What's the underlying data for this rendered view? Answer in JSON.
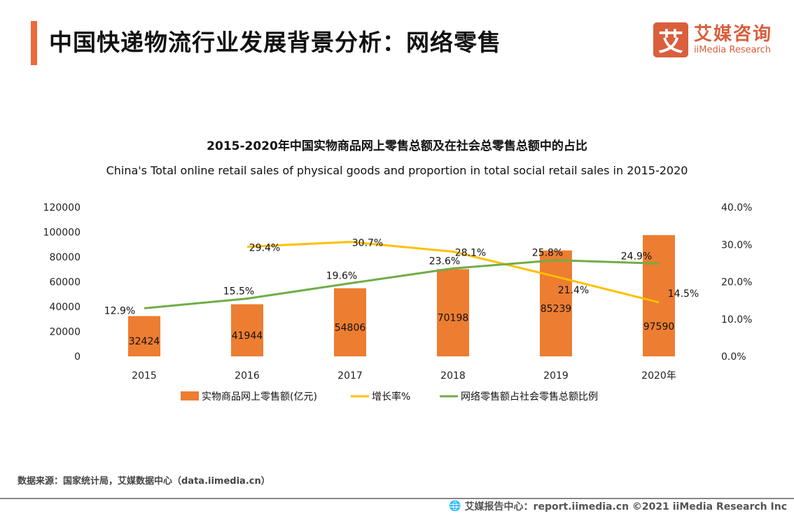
{
  "header": {
    "title": "中国快递物流行业发展背景分析：网络零售",
    "logo_mark": "艾",
    "logo_cn": "艾媒咨询",
    "logo_en": "iiMedia Research"
  },
  "chart_data": {
    "type": "bar+line",
    "title": "2015-2020年中国实物商品网上零售总额及在社会总零售总额中的占比",
    "subtitle": "China's Total online retail sales of physical goods and proportion in total social retail sales in 2015-2020",
    "categories": [
      "2015",
      "2016",
      "2017",
      "2018",
      "2019",
      "2020年"
    ],
    "y_left": {
      "range": [
        0,
        120000
      ],
      "ticks": [
        "0",
        "20000",
        "40000",
        "60000",
        "80000",
        "100000",
        "120000"
      ]
    },
    "y_right": {
      "range": [
        0,
        40
      ],
      "ticks": [
        "0.0%",
        "10.0%",
        "20.0%",
        "30.0%",
        "40.0%"
      ]
    },
    "series": [
      {
        "name": "实物商品网上零售额(亿元)",
        "type": "bar",
        "color": "#ed7d31",
        "values": [
          32424,
          41944,
          54806,
          70198,
          85239,
          97590
        ],
        "labels": [
          "32424",
          "41944",
          "54806",
          "70198",
          "85239",
          "97590"
        ]
      },
      {
        "name": "增长率%",
        "type": "line",
        "axis": "right",
        "color": "#ffc000",
        "values": [
          null,
          29.4,
          30.7,
          28.1,
          21.4,
          14.5
        ],
        "labels": [
          "",
          "29.4%",
          "30.7%",
          "28.1%",
          "21.4%",
          "14.5%"
        ]
      },
      {
        "name": "网络零售额占社会零售总额比例",
        "type": "line",
        "axis": "right",
        "color": "#70ad47",
        "values": [
          12.9,
          15.5,
          19.6,
          23.6,
          25.8,
          24.9
        ],
        "labels": [
          "12.9%",
          "15.5%",
          "19.6%",
          "23.6%",
          "25.8%",
          "24.9%"
        ]
      }
    ],
    "legend": "bottom",
    "grid": false
  },
  "footer": {
    "source": "数据来源：国家统计局，艾媒数据中心（data.iimedia.cn）",
    "copyright": "艾媒报告中心：report.iimedia.cn   ©2021  iiMedia Research  Inc"
  }
}
